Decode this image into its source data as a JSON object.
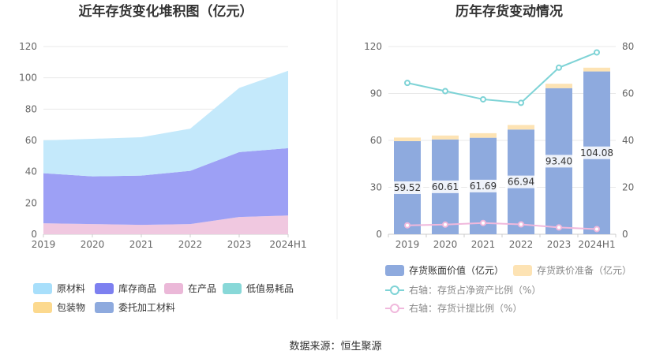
{
  "source": "数据来源：恒生聚源",
  "chart_data": [
    {
      "type": "area",
      "stacked": true,
      "title": "近年存货变化堆积图（亿元）",
      "categories": [
        "2019",
        "2020",
        "2021",
        "2022",
        "2023",
        "2024H1"
      ],
      "ylim": [
        0,
        120
      ],
      "yticks": [
        0,
        20,
        40,
        60,
        80,
        100,
        120
      ],
      "grid": true,
      "legend_position": "bottom",
      "series": [
        {
          "name": "在产品",
          "color": "#f0c8e0",
          "values": [
            7,
            6.5,
            6,
            6.5,
            11,
            12
          ]
        },
        {
          "name": "库存商品",
          "color": "#9da0f5",
          "values": [
            32,
            30.5,
            31.5,
            34,
            41.5,
            43
          ]
        },
        {
          "name": "原材料",
          "color": "#c4e9fb",
          "values": [
            21,
            24,
            24.5,
            27,
            41,
            49.5
          ]
        }
      ],
      "legend": [
        {
          "name": "原材料",
          "color": "#a8dffb"
        },
        {
          "name": "库存商品",
          "color": "#7d80f0"
        },
        {
          "name": "在产品",
          "color": "#ebb8d8"
        },
        {
          "name": "低值易耗品",
          "color": "#88d8d8"
        },
        {
          "name": "包装物",
          "color": "#fcd98e"
        },
        {
          "name": "委托加工材料",
          "color": "#8eaade"
        }
      ]
    },
    {
      "type": "bar",
      "title": "历年存货变动情况",
      "categories": [
        "2019",
        "2020",
        "2021",
        "2022",
        "2023",
        "2024H1"
      ],
      "ylim": [
        0,
        120
      ],
      "yticks": [
        0,
        30,
        60,
        90,
        120
      ],
      "y2lim": [
        0,
        80
      ],
      "y2ticks": [
        0,
        20,
        40,
        60,
        80
      ],
      "legend_position": "bottom",
      "series": [
        {
          "name": "存货账面价值（亿元）",
          "color": "#8eaade",
          "values": [
            59.52,
            60.61,
            61.69,
            66.94,
            93.4,
            104.08
          ],
          "labels": [
            "59.52",
            "60.61",
            "61.69",
            "66.94",
            "93.40",
            "104.08"
          ]
        },
        {
          "name": "存货跌价准备（亿元）",
          "color": "#fde3b4",
          "values": [
            2.3,
            2.5,
            2.9,
            2.9,
            2.8,
            2.4
          ]
        },
        {
          "name": "右轴：存货占净资产比例（%）",
          "color": "#7ed3d6",
          "axis": "right",
          "values": [
            64.5,
            61,
            57.5,
            56,
            71,
            77.5
          ]
        },
        {
          "name": "右轴：存货计提比例（%）",
          "color": "#f0b8dc",
          "axis": "right",
          "values": [
            3.8,
            4.1,
            4.8,
            4.2,
            2.9,
            2.2
          ]
        }
      ]
    }
  ]
}
